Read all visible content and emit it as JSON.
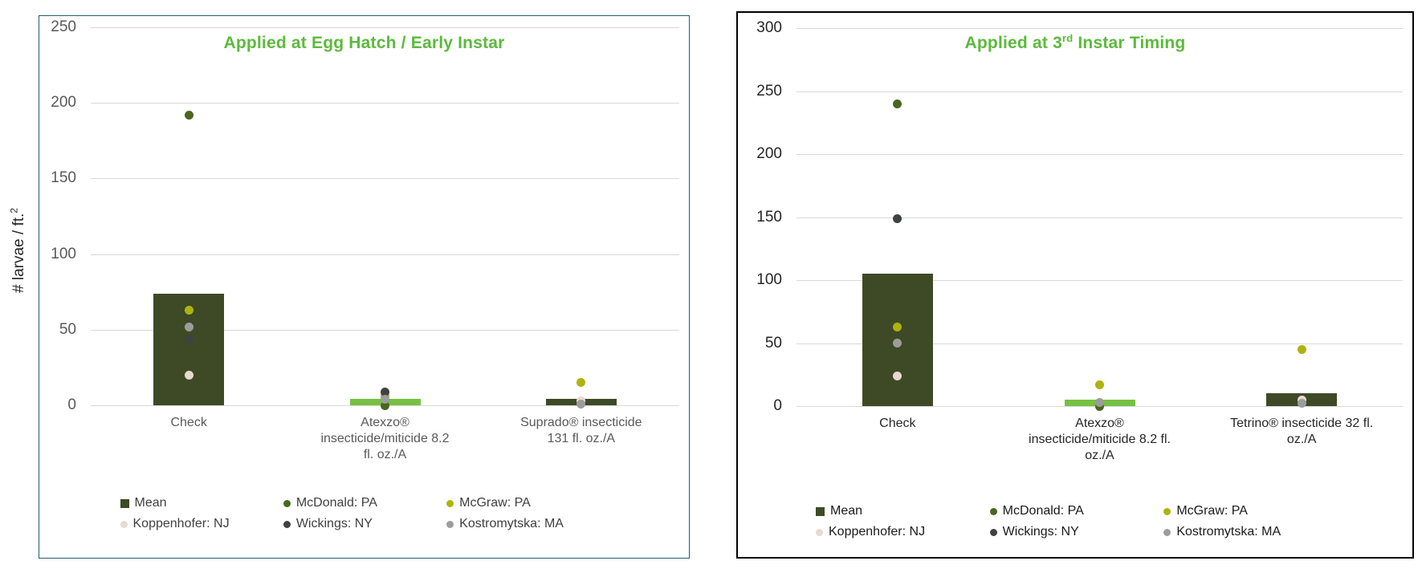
{
  "page": {
    "background": "#ffffff"
  },
  "chart_data": [
    {
      "type": "bar+scatter",
      "title": "Applied at Egg Hatch / Early Instar",
      "title_parts": {
        "pre": "Applied at Egg Hatch / Early Instar",
        "sup": "",
        "post": ""
      },
      "title_color": "#5cba3c",
      "ylabel": {
        "text": "# larvae / ft.",
        "sup": "2"
      },
      "ylim": [
        0,
        250
      ],
      "ytick_step": 50,
      "yticks": [
        0,
        50,
        100,
        150,
        200,
        250
      ],
      "grid": true,
      "legend_position": "bottom",
      "categories": [
        "Check",
        "Atexzo® insecticide/miticide 8.2 fl. oz./A",
        "Suprado® insecticide 131 fl. oz./A"
      ],
      "category_lines": [
        [
          "Check"
        ],
        [
          "Atexzo®",
          "insecticide/miticide 8.2",
          "fl. oz./A"
        ],
        [
          "Suprado® insecticide",
          "131 fl. oz./A"
        ]
      ],
      "bar_series": {
        "name": "Mean",
        "values": [
          74,
          4,
          4
        ],
        "colors": [
          "#3e4a26",
          "#77c043",
          "#3e4a26"
        ]
      },
      "point_series": [
        {
          "name": "McDonald: PA",
          "color": "#4a661f",
          "values": [
            192,
            0,
            null
          ]
        },
        {
          "name": "McGraw: PA",
          "color": "#aeb30f",
          "values": [
            63,
            6,
            15
          ]
        },
        {
          "name": "Koppenhofer: NJ",
          "color": "#e9d9ce",
          "values": [
            20,
            null,
            3
          ]
        },
        {
          "name": "Wickings: NY",
          "color": "#3f4142",
          "values": [
            44,
            9,
            null
          ]
        },
        {
          "name": "Kostromytska: MA",
          "color": "#9c9c9c",
          "values": [
            52,
            4,
            1
          ]
        }
      ],
      "axis_text_color": "#595959",
      "legend_text_color": "#404040",
      "border": {
        "color": "#215e70",
        "width": 1
      }
    },
    {
      "type": "bar+scatter",
      "title": "Applied at 3rd Instar Timing",
      "title_parts": {
        "pre": "Applied at 3",
        "sup": "rd",
        "post": " Instar Timing"
      },
      "title_color": "#5cba3c",
      "ylabel": {
        "text": "",
        "sup": ""
      },
      "ylim": [
        0,
        300
      ],
      "ytick_step": 50,
      "yticks": [
        0,
        50,
        100,
        150,
        200,
        250,
        300
      ],
      "grid": true,
      "legend_position": "bottom",
      "categories": [
        "Check",
        "Atexzo® insecticide/miticide 8.2 fl. oz./A",
        "Tetrino® insecticide 32 fl. oz./A"
      ],
      "category_lines": [
        [
          "Check"
        ],
        [
          "Atexzo®",
          "insecticide/miticide 8.2 fl.",
          "oz./A"
        ],
        [
          "Tetrino® insecticide 32 fl.",
          "oz./A"
        ]
      ],
      "bar_series": {
        "name": "Mean",
        "values": [
          105,
          5,
          10
        ],
        "colors": [
          "#3e4a26",
          "#77c043",
          "#3e4a26"
        ]
      },
      "point_series": [
        {
          "name": "McDonald: PA",
          "color": "#4a661f",
          "values": [
            240,
            0,
            null
          ]
        },
        {
          "name": "McGraw: PA",
          "color": "#aeb30f",
          "values": [
            63,
            17,
            45
          ]
        },
        {
          "name": "Koppenhofer: NJ",
          "color": "#e9d9ce",
          "values": [
            24,
            null,
            5
          ]
        },
        {
          "name": "Wickings: NY",
          "color": "#3f4142",
          "values": [
            149,
            null,
            null
          ]
        },
        {
          "name": "Kostromytska: MA",
          "color": "#9c9c9c",
          "values": [
            50,
            3,
            2
          ]
        }
      ],
      "axis_text_color": "#262626",
      "legend_text_color": "#1a1a1a",
      "border": {
        "color": "#000000",
        "width": 2
      }
    }
  ],
  "legend": {
    "entries": [
      {
        "label": "Mean",
        "shape": "square",
        "color": "#3e4a26"
      },
      {
        "label": "McDonald: PA",
        "shape": "circle",
        "color": "#4a661f"
      },
      {
        "label": "McGraw: PA",
        "shape": "circle",
        "color": "#aeb30f"
      },
      {
        "label": "Koppenhofer: NJ",
        "shape": "circle",
        "color": "#e9d9ce"
      },
      {
        "label": "Wickings: NY",
        "shape": "circle",
        "color": "#3f4142"
      },
      {
        "label": "Kostromytska: MA",
        "shape": "circle",
        "color": "#9c9c9c"
      }
    ]
  }
}
